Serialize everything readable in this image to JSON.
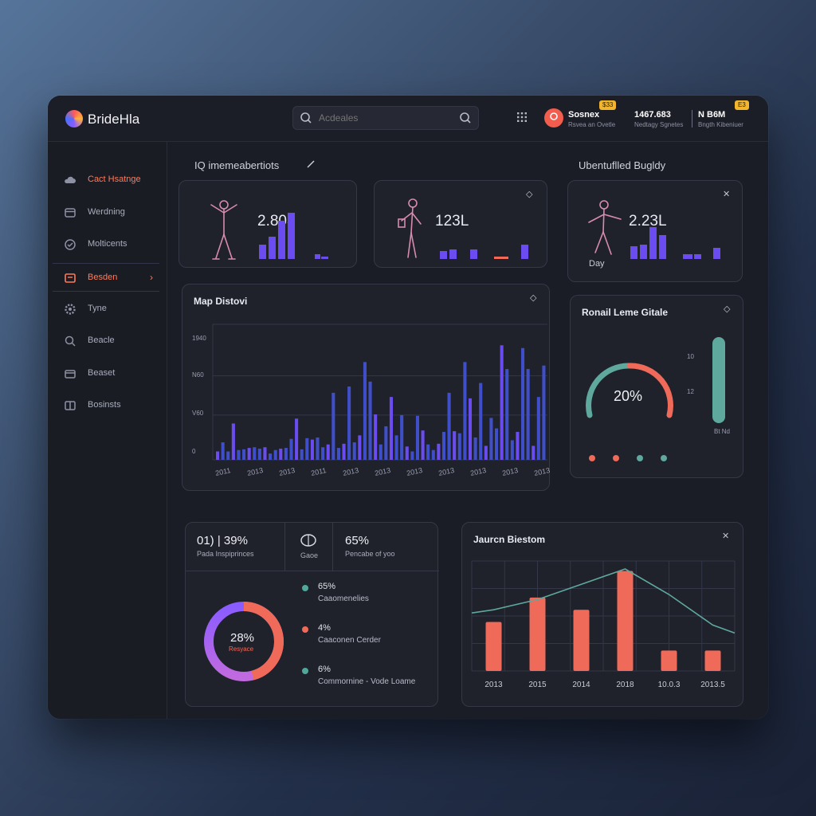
{
  "app": {
    "brand": "BrideHla"
  },
  "search": {
    "placeholder": "Acdeales",
    "search_icon": "search-icon"
  },
  "header": {
    "user": {
      "name": "Sosnex",
      "sub": "Rsvea an Ovetle",
      "badge": "$33"
    },
    "stat1": {
      "value": "1467.683",
      "sub": "Nedtagy Sgnetes"
    },
    "stat2": {
      "value": "N B6M",
      "sub": "Bngth Kibeniuer",
      "badge": "E3"
    }
  },
  "sidebar": {
    "items": [
      {
        "label": "Cact Hsatnge",
        "icon": "cloud-icon"
      },
      {
        "label": "Werdning",
        "icon": "card-icon"
      },
      {
        "label": "Molticents",
        "icon": "check-icon"
      },
      {
        "label": "Besden",
        "icon": "folder-icon"
      },
      {
        "label": "Tyne",
        "icon": "gear-icon"
      },
      {
        "label": "Beacle",
        "icon": "search-icon"
      },
      {
        "label": "Beaset",
        "icon": "box-icon"
      },
      {
        "label": "Bosinsts",
        "icon": "grid-icon"
      }
    ]
  },
  "sections": {
    "left_title": "IQ imemeabertiots",
    "right_title": "Ubentuflled Bugldy"
  },
  "kpi_cards": [
    {
      "value": "2.803",
      "label": ""
    },
    {
      "value": "123L",
      "label": ""
    },
    {
      "value": "2.23L",
      "label": "Day"
    }
  ],
  "map_chart": {
    "title": "Map Distovi",
    "y_ticks": [
      "1940",
      "N60",
      "V60",
      "0"
    ],
    "x_ticks": [
      "2011",
      "2013",
      "2013",
      "2011",
      "2013",
      "2013",
      "2013",
      "2013",
      "2013",
      "2013",
      "2013"
    ]
  },
  "gauge_card": {
    "title": "Ronail Leme Gitale",
    "value": "20%",
    "side_ticks": [
      "10",
      "12"
    ],
    "side_label": "Bt Nd"
  },
  "donut_card": {
    "header": [
      {
        "value": "01) | 39%",
        "label": "Pada Inspiprinces"
      },
      {
        "value": "",
        "label": "Gaoe"
      },
      {
        "value": "65%",
        "label": "Pencabe of yoo"
      }
    ],
    "center_value": "28%",
    "center_label": "Resyace",
    "legend": [
      {
        "value": "65%",
        "label": "Caaomenelies",
        "color": "#4fa89a"
      },
      {
        "value": "4%",
        "label": "Caaconen Cerder",
        "color": "#f06a5a"
      },
      {
        "value": "6%",
        "label": "Commornine - Vode Loame",
        "color": "#4fa89a"
      }
    ]
  },
  "trend_card": {
    "title": "Jaurcn Biestom"
  },
  "colors": {
    "accent": "#ff7a5a",
    "bar_purple": "#6a4cf0",
    "bar_red": "#f06a5a",
    "teal": "#5fa89e",
    "bg": "#1b1d26"
  },
  "chart_data": [
    {
      "type": "bar",
      "title": "Map Distovi",
      "ylim": [
        0,
        1940
      ],
      "values": [
        120,
        250,
        120,
        520,
        140,
        150,
        170,
        180,
        160,
        180,
        90,
        140,
        160,
        170,
        300,
        590,
        150,
        310,
        290,
        320,
        180,
        220,
        960,
        170,
        230,
        1050,
        250,
        350,
        1400,
        1120,
        650,
        220,
        480,
        900,
        350,
        640,
        190,
        120,
        630,
        420,
        220,
        140,
        230,
        400,
        960,
        410,
        380,
        1400,
        880,
        320,
        1100,
        200,
        600,
        450,
        1640,
        1300,
        280,
        400,
        1600,
        1300,
        200,
        900,
        1350
      ],
      "x_ticks": [
        "2011",
        "2013",
        "2013",
        "2011",
        "2013",
        "2013",
        "2013",
        "2013",
        "2013",
        "2013",
        "2013"
      ]
    },
    {
      "type": "bar",
      "title": "Jaurcn Biestom",
      "categories": [
        "2013",
        "2015",
        "2014",
        "2018",
        "10.0.3",
        "2013.5"
      ],
      "values": [
        48,
        72,
        60,
        98,
        20,
        20
      ],
      "line": [
        60,
        70,
        85,
        100,
        75,
        45
      ]
    }
  ]
}
